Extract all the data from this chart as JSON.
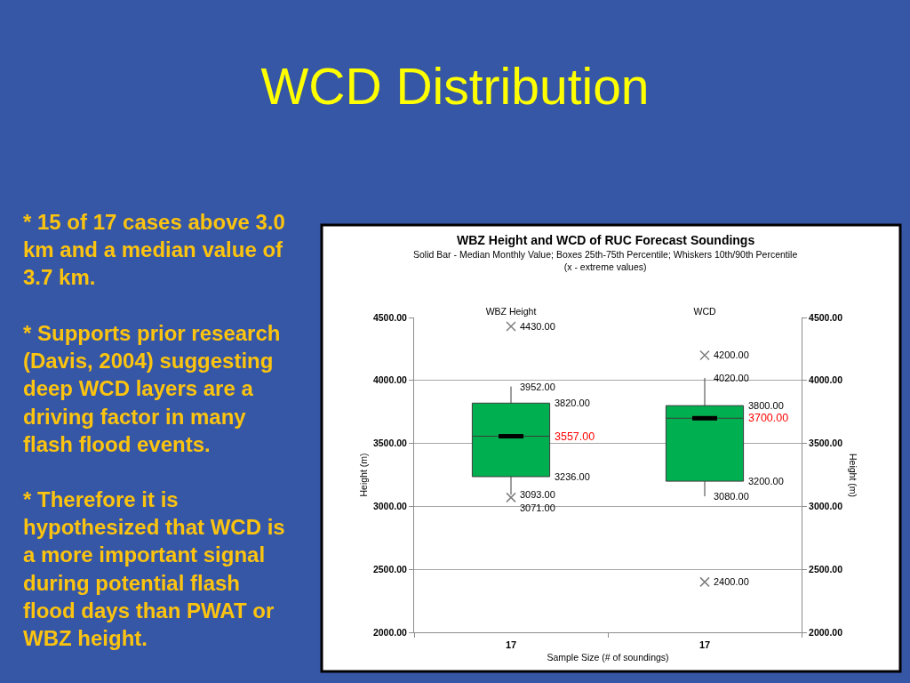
{
  "chart_data": {
    "type": "box",
    "title": "WCD Distribution",
    "subtitle": "WBZ Height and WCD of RUC Forecast Soundings",
    "xlabel": "Sample Size (# of soundings)",
    "ylabel": "Height (m)",
    "y2label": "Height (m)",
    "categories": [
      "WBZ Height",
      "WCD"
    ],
    "series": [
      {
        "color": "#00b050",
        "boxes": [
          {
            "low": 3093,
            "q1": 3236,
            "median": 3557,
            "q3": 3820,
            "high": 3952
          },
          {
            "low": 3080,
            "q1": 3200,
            "median": 3700,
            "q3": 3800,
            "high": 4020
          }
        ]
      },
      {
        "type": "scatter",
        "color": "#7f7f7f",
        "x": [
          "WBZ Height",
          "WBZ Height",
          "WCD",
          "WCD"
        ],
        "values": [
          4430,
          3071,
          4200,
          2400
        ]
      }
    ],
    "ylim": [
      2000,
      4500
    ],
    "yticks": [
      {
        "value": 2000,
        "label": "2000.00"
      },
      {
        "value": 2500,
        "label": "2500.00"
      },
      {
        "value": 3000,
        "label": "3000.00"
      },
      {
        "value": 3500,
        "label": "3500.00"
      },
      {
        "value": 4000,
        "label": "4000.00"
      },
      {
        "value": 4500,
        "label": "4500.00"
      }
    ],
    "y2lim": [
      2000,
      4500
    ],
    "y2ticks": [
      {
        "value": 2000,
        "label": "2000.00"
      },
      {
        "value": 2500,
        "label": "2500.00"
      },
      {
        "value": 3000,
        "label": "3000.00"
      },
      {
        "value": 3500,
        "label": "3500.00"
      },
      {
        "value": 4000,
        "label": "4000.00"
      },
      {
        "value": 4500,
        "label": "4500.00"
      }
    ],
    "grid": "y",
    "marker": "cross",
    "annotations": [
      "Solid Bar - Median Monthly Value; Boxes 25th-75th Percentile; Whiskers 10th/90th Percentile\n(x - extreme values)",
      "* 15 of 17 cases above 3.0\nkm and a median value of\n3.7 km.",
      "* Supports prior research\n(Davis, 2004) suggesting\ndeep WCD layers are a\ndriving factor in many\nflash flood events.",
      "* Therefore it is\nhypothesized that WCD is\na more important signal\nduring potential flash\nflood days than PWAT or\nWBZ height.",
      "17",
      "17",
      "3820.00",
      "3557.00",
      "3236.00",
      "3800.00",
      "3700.00",
      "3200.00",
      {
        "text": "4430.00",
        "x": "WBZ Height",
        "y": 4430
      },
      {
        "text": "3952.00",
        "x": "WBZ Height",
        "y": 3952
      },
      {
        "text": "3093.00",
        "x": "WBZ Height",
        "y": 3093
      },
      {
        "text": "3071.00",
        "x": "WBZ Height",
        "y": 3071
      },
      {
        "text": "4200.00",
        "x": "WCD",
        "y": 4200
      },
      {
        "text": "4020.00",
        "x": "WCD",
        "y": 4020
      },
      {
        "text": "3080.00",
        "x": "WCD",
        "y": 3080
      },
      {
        "text": "2400.00",
        "x": "WCD",
        "y": 2400
      }
    ]
  }
}
